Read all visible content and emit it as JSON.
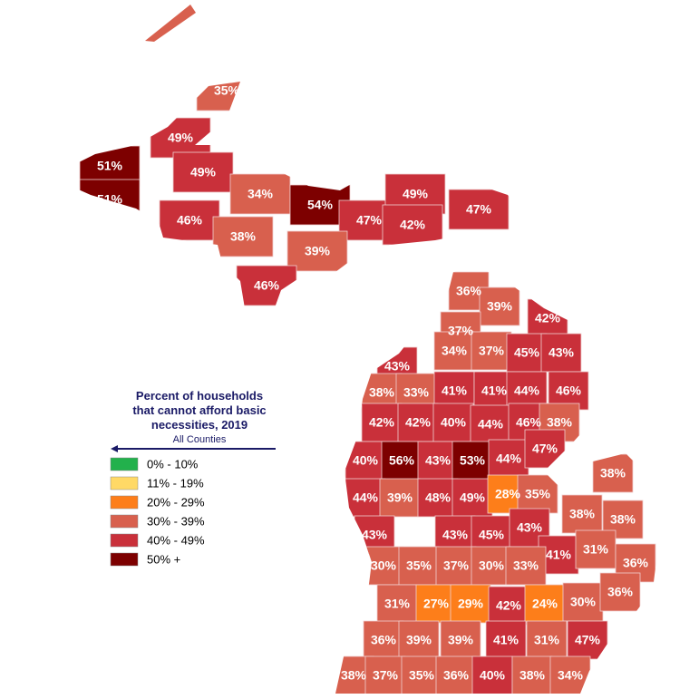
{
  "legend": {
    "title_lines": [
      "Percent of households",
      "that cannot afford basic",
      "necessities, 2019"
    ],
    "subtitle": "All Counties",
    "items": [
      {
        "label": "0% - 10%",
        "color": "#22b14c"
      },
      {
        "label": "11% - 19%",
        "color": "#ffd966"
      },
      {
        "label": "20% - 29%",
        "color": "#fd7e1a"
      },
      {
        "label": "30% - 39%",
        "color": "#d8604e"
      },
      {
        "label": "40% - 49%",
        "color": "#c9303a"
      },
      {
        "label": "50% +",
        "color": "#7d0000"
      }
    ]
  },
  "regions": [
    {
      "value": 35,
      "label": "35%",
      "color": "#d8604e"
    },
    {
      "value": 49,
      "label": "49%",
      "color": "#c9303a"
    },
    {
      "value": 51,
      "label": "51%",
      "color": "#7d0000"
    },
    {
      "value": 51,
      "label": "51%",
      "color": "#7d0000"
    },
    {
      "value": 49,
      "label": "49%",
      "color": "#c9303a"
    },
    {
      "value": 34,
      "label": "34%",
      "color": "#d8604e"
    },
    {
      "value": 46,
      "label": "46%",
      "color": "#c9303a"
    },
    {
      "value": 38,
      "label": "38%",
      "color": "#d8604e"
    },
    {
      "value": 54,
      "label": "54%",
      "color": "#7d0000"
    },
    {
      "value": 47,
      "label": "47%",
      "color": "#c9303a"
    },
    {
      "value": 49,
      "label": "49%",
      "color": "#c9303a"
    },
    {
      "value": 42,
      "label": "42%",
      "color": "#c9303a"
    },
    {
      "value": 47,
      "label": "47%",
      "color": "#c9303a"
    },
    {
      "value": 39,
      "label": "39%",
      "color": "#d8604e"
    },
    {
      "value": 46,
      "label": "46%",
      "color": "#c9303a"
    },
    {
      "value": 36,
      "label": "36%",
      "color": "#d8604e"
    },
    {
      "value": 39,
      "label": "39%",
      "color": "#d8604e"
    },
    {
      "value": 42,
      "label": "42%",
      "color": "#c9303a"
    },
    {
      "value": 37,
      "label": "37%",
      "color": "#d8604e"
    },
    {
      "value": 34,
      "label": "34%",
      "color": "#d8604e"
    },
    {
      "value": 37,
      "label": "37%",
      "color": "#d8604e"
    },
    {
      "value": 45,
      "label": "45%",
      "color": "#c9303a"
    },
    {
      "value": 43,
      "label": "43%",
      "color": "#c9303a"
    },
    {
      "value": 43,
      "label": "43%",
      "color": "#c9303a"
    },
    {
      "value": 38,
      "label": "38%",
      "color": "#d8604e"
    },
    {
      "value": 33,
      "label": "33%",
      "color": "#d8604e"
    },
    {
      "value": 41,
      "label": "41%",
      "color": "#c9303a"
    },
    {
      "value": 41,
      "label": "41%",
      "color": "#c9303a"
    },
    {
      "value": 44,
      "label": "44%",
      "color": "#c9303a"
    },
    {
      "value": 46,
      "label": "46%",
      "color": "#c9303a"
    },
    {
      "value": 42,
      "label": "42%",
      "color": "#c9303a"
    },
    {
      "value": 42,
      "label": "42%",
      "color": "#c9303a"
    },
    {
      "value": 40,
      "label": "40%",
      "color": "#c9303a"
    },
    {
      "value": 44,
      "label": "44%",
      "color": "#c9303a"
    },
    {
      "value": 46,
      "label": "46%",
      "color": "#c9303a"
    },
    {
      "value": 38,
      "label": "38%",
      "color": "#d8604e"
    },
    {
      "value": 40,
      "label": "40%",
      "color": "#c9303a"
    },
    {
      "value": 56,
      "label": "56%",
      "color": "#7d0000"
    },
    {
      "value": 43,
      "label": "43%",
      "color": "#c9303a"
    },
    {
      "value": 53,
      "label": "53%",
      "color": "#7d0000"
    },
    {
      "value": 44,
      "label": "44%",
      "color": "#c9303a"
    },
    {
      "value": 47,
      "label": "47%",
      "color": "#c9303a"
    },
    {
      "value": 38,
      "label": "38%",
      "color": "#d8604e"
    },
    {
      "value": 44,
      "label": "44%",
      "color": "#c9303a"
    },
    {
      "value": 39,
      "label": "39%",
      "color": "#d8604e"
    },
    {
      "value": 48,
      "label": "48%",
      "color": "#c9303a"
    },
    {
      "value": 49,
      "label": "49%",
      "color": "#c9303a"
    },
    {
      "value": 28,
      "label": "28%",
      "color": "#fd7e1a"
    },
    {
      "value": 35,
      "label": "35%",
      "color": "#d8604e"
    },
    {
      "value": 38,
      "label": "38%",
      "color": "#d8604e"
    },
    {
      "value": 38,
      "label": "38%",
      "color": "#d8604e"
    },
    {
      "value": 43,
      "label": "43%",
      "color": "#c9303a"
    },
    {
      "value": 43,
      "label": "43%",
      "color": "#c9303a"
    },
    {
      "value": 45,
      "label": "45%",
      "color": "#c9303a"
    },
    {
      "value": 43,
      "label": "43%",
      "color": "#c9303a"
    },
    {
      "value": 41,
      "label": "41%",
      "color": "#c9303a"
    },
    {
      "value": 31,
      "label": "31%",
      "color": "#d8604e"
    },
    {
      "value": 36,
      "label": "36%",
      "color": "#d8604e"
    },
    {
      "value": 30,
      "label": "30%",
      "color": "#d8604e"
    },
    {
      "value": 35,
      "label": "35%",
      "color": "#d8604e"
    },
    {
      "value": 37,
      "label": "37%",
      "color": "#d8604e"
    },
    {
      "value": 30,
      "label": "30%",
      "color": "#d8604e"
    },
    {
      "value": 33,
      "label": "33%",
      "color": "#d8604e"
    },
    {
      "value": 31,
      "label": "31%",
      "color": "#d8604e"
    },
    {
      "value": 27,
      "label": "27%",
      "color": "#fd7e1a"
    },
    {
      "value": 29,
      "label": "29%",
      "color": "#fd7e1a"
    },
    {
      "value": 42,
      "label": "42%",
      "color": "#c9303a"
    },
    {
      "value": 24,
      "label": "24%",
      "color": "#fd7e1a"
    },
    {
      "value": 30,
      "label": "30%",
      "color": "#d8604e"
    },
    {
      "value": 36,
      "label": "36%",
      "color": "#d8604e"
    },
    {
      "value": 36,
      "label": "36%",
      "color": "#d8604e"
    },
    {
      "value": 39,
      "label": "39%",
      "color": "#d8604e"
    },
    {
      "value": 39,
      "label": "39%",
      "color": "#d8604e"
    },
    {
      "value": 41,
      "label": "41%",
      "color": "#c9303a"
    },
    {
      "value": 31,
      "label": "31%",
      "color": "#d8604e"
    },
    {
      "value": 47,
      "label": "47%",
      "color": "#c9303a"
    },
    {
      "value": 38,
      "label": "38%",
      "color": "#d8604e"
    },
    {
      "value": 37,
      "label": "37%",
      "color": "#d8604e"
    },
    {
      "value": 35,
      "label": "35%",
      "color": "#d8604e"
    },
    {
      "value": 36,
      "label": "36%",
      "color": "#d8604e"
    },
    {
      "value": 40,
      "label": "40%",
      "color": "#c9303a"
    },
    {
      "value": 38,
      "label": "38%",
      "color": "#d8604e"
    },
    {
      "value": 34,
      "label": "34%",
      "color": "#d8604e"
    }
  ]
}
